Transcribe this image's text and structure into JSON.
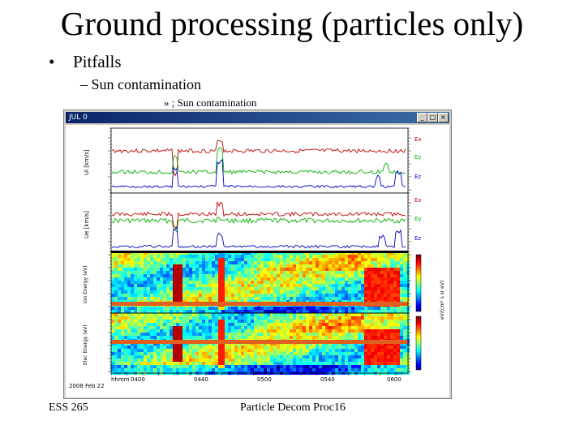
{
  "slide": {
    "title": "Ground processing (particles only)",
    "bullet1": "Pitfalls",
    "bullet1_marker": "•",
    "bullet2": "– Sun contamination",
    "bullet3": "» ; Sun contamination",
    "footer_left": "ESS 265",
    "footer_center": "Particle Decom Proc16"
  },
  "window": {
    "title": "JUL 0",
    "buttons": [
      "_",
      "□",
      "×"
    ]
  },
  "plot": {
    "legend_top": [
      "Ex",
      "Ey",
      "Ez"
    ],
    "legend_mid": [
      "Ex",
      "Ey",
      "Ez"
    ],
    "ylabel_top": "Ui [km/s]",
    "ylabel_mid": "Ue [km/s]",
    "ylabel_sp1": "Ion Energy (eV)",
    "ylabel_sp2": "Elec Energy (eV)",
    "colorbar_label": "eV/(cm² s sr eV)",
    "x_ticks": [
      "0400",
      "0440",
      "0500",
      "0540",
      "0600"
    ],
    "x_time_label": "hhmm",
    "x_date": "2008 Feb 22"
  },
  "colors": {
    "red": "#c00000",
    "green": "#00b000",
    "blue": "#0000c0",
    "titlebar": "#0a246a"
  }
}
